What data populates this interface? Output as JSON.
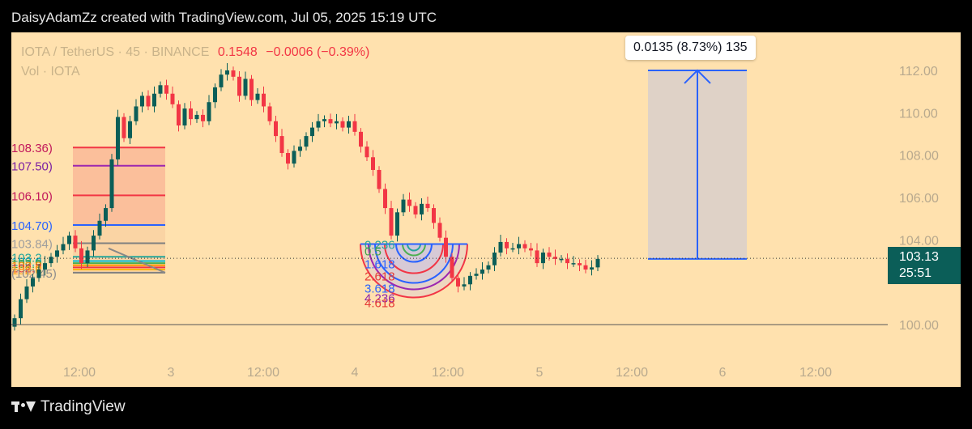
{
  "header": {
    "attribution": "DaisyAdamZz created with TradingView.com, Jul 05, 2025 15:19 UTC"
  },
  "legend": {
    "symbol": "IOTA / TetherUS · 45 · BINANCE",
    "price": "0.1548",
    "change": "−0.0006 (−0.39%)",
    "volume_label": "Vol · IOTA"
  },
  "measure_callout": "0.0135 (8.73%) 135",
  "price_tag": {
    "price": "103.13",
    "countdown": "25:51"
  },
  "footer": {
    "brand": "TradingView"
  },
  "colors": {
    "background": "#ffe1ae",
    "up": "#0b5e58",
    "down": "#f23645",
    "measure": "#2962ff",
    "page": "#000000"
  },
  "chart_data": {
    "type": "candlestick",
    "y_axis": {
      "ticks": [
        "112.00",
        "110.00",
        "108.00",
        "106.00",
        "104.00",
        "100.00"
      ],
      "range": [
        99.5,
        113.0
      ]
    },
    "x_axis": {
      "ticks": [
        "12:00",
        "3",
        "12:00",
        "4",
        "12:00",
        "5",
        "12:00",
        "6",
        "12:00"
      ]
    },
    "current_price": 103.13,
    "ohlc_closes": [
      100.3,
      101.2,
      101.8,
      102.2,
      102.6,
      102.9,
      103.2,
      103.5,
      103.8,
      104.2,
      103.6,
      102.9,
      103.5,
      104.2,
      104.9,
      105.5,
      107.8,
      109.8,
      108.8,
      109.6,
      110.3,
      110.8,
      110.3,
      110.9,
      111.3,
      110.9,
      110.4,
      109.4,
      110.2,
      109.7,
      109.9,
      109.6,
      110.5,
      111.2,
      111.8,
      112.0,
      111.7,
      110.8,
      111.6,
      110.6,
      110.9,
      110.3,
      109.6,
      108.9,
      108.1,
      107.6,
      108.2,
      108.4,
      108.9,
      109.3,
      109.6,
      109.7,
      109.5,
      109.6,
      109.3,
      109.6,
      109.1,
      108.4,
      107.9,
      107.3,
      106.4,
      105.5,
      104.2,
      105.3,
      105.9,
      105.6,
      105.2,
      105.7,
      105.5,
      104.8,
      104.1,
      103.2,
      102.2,
      101.8,
      101.9,
      102.3,
      102.4,
      102.6,
      102.8,
      103.4,
      103.9,
      103.6,
      103.6,
      103.8,
      103.6,
      103.5,
      102.9,
      103.4,
      103.2,
      103.1,
      103.1,
      102.9,
      102.9,
      102.8,
      102.6,
      102.7,
      103.1
    ],
    "fib_retracement_labels": [
      "108.36)",
      "107.50)",
      "106.10)",
      "104.70)",
      "103.84)",
      "103.2",
      "103.0",
      "102.9",
      "102.8",
      "102.7",
      "102.6",
      "(102.45)"
    ],
    "fib_fan_labels": [
      "0.236",
      "0.5",
      "1.618",
      "2.618",
      "3.618",
      "4.236",
      "4.618"
    ],
    "measure_range": {
      "from": 103.1,
      "to": 112.0,
      "label": "0.0135 (8.73%) 135"
    }
  }
}
